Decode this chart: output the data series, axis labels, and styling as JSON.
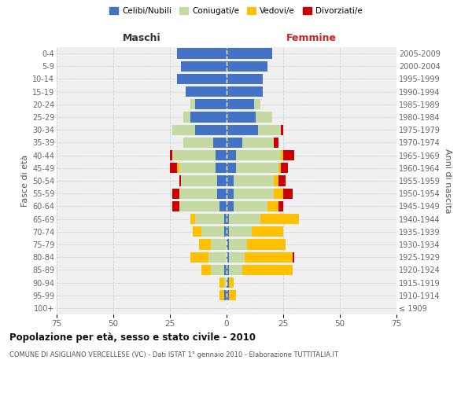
{
  "age_groups": [
    "100+",
    "95-99",
    "90-94",
    "85-89",
    "80-84",
    "75-79",
    "70-74",
    "65-69",
    "60-64",
    "55-59",
    "50-54",
    "45-49",
    "40-44",
    "35-39",
    "30-34",
    "25-29",
    "20-24",
    "15-19",
    "10-14",
    "5-9",
    "0-4"
  ],
  "birth_years": [
    "≤ 1909",
    "1910-1914",
    "1915-1919",
    "1920-1924",
    "1925-1929",
    "1930-1934",
    "1935-1939",
    "1940-1944",
    "1945-1949",
    "1950-1954",
    "1955-1959",
    "1960-1964",
    "1965-1969",
    "1970-1974",
    "1975-1979",
    "1980-1984",
    "1985-1989",
    "1990-1994",
    "1995-1999",
    "2000-2004",
    "2005-2009"
  ],
  "male_single": [
    0,
    1,
    0,
    1,
    0,
    0,
    1,
    1,
    3,
    4,
    4,
    5,
    5,
    6,
    14,
    16,
    14,
    18,
    22,
    20,
    22
  ],
  "male_married": [
    0,
    0,
    1,
    6,
    8,
    7,
    10,
    13,
    18,
    17,
    16,
    16,
    19,
    13,
    10,
    3,
    2,
    0,
    0,
    0,
    0
  ],
  "male_widowed": [
    0,
    2,
    2,
    4,
    8,
    5,
    4,
    2,
    0,
    0,
    0,
    1,
    0,
    0,
    0,
    0,
    0,
    0,
    0,
    0,
    0
  ],
  "male_divorced": [
    0,
    0,
    0,
    0,
    0,
    0,
    0,
    0,
    3,
    3,
    1,
    3,
    1,
    0,
    0,
    0,
    0,
    0,
    0,
    0,
    0
  ],
  "female_single": [
    0,
    1,
    1,
    1,
    1,
    1,
    1,
    1,
    3,
    3,
    3,
    4,
    4,
    7,
    14,
    13,
    12,
    16,
    16,
    18,
    20
  ],
  "female_married": [
    0,
    0,
    0,
    6,
    7,
    8,
    10,
    14,
    15,
    18,
    18,
    19,
    20,
    14,
    10,
    7,
    3,
    0,
    0,
    0,
    0
  ],
  "female_widowed": [
    0,
    3,
    2,
    22,
    21,
    17,
    14,
    17,
    5,
    4,
    2,
    1,
    1,
    0,
    0,
    0,
    0,
    0,
    0,
    0,
    0
  ],
  "female_divorced": [
    0,
    0,
    0,
    0,
    1,
    0,
    0,
    0,
    2,
    4,
    3,
    3,
    5,
    2,
    1,
    0,
    0,
    0,
    0,
    0,
    0
  ],
  "color_single": "#4472c4",
  "color_married": "#c5d9a3",
  "color_widowed": "#ffc000",
  "color_divorced": "#cc0000",
  "title_main": "Popolazione per età, sesso e stato civile - 2010",
  "title_sub": "COMUNE DI ASIGLIANO VERCELLESE (VC) - Dati ISTAT 1° gennaio 2010 - Elaborazione TUTTITALIA.IT",
  "xlabel_left": "Maschi",
  "xlabel_right": "Femmine",
  "ylabel_left": "Fasce di età",
  "ylabel_right": "Anni di nascita",
  "xlim": 75,
  "bg_color": "#f0f0f0",
  "grid_color": "#cccccc"
}
